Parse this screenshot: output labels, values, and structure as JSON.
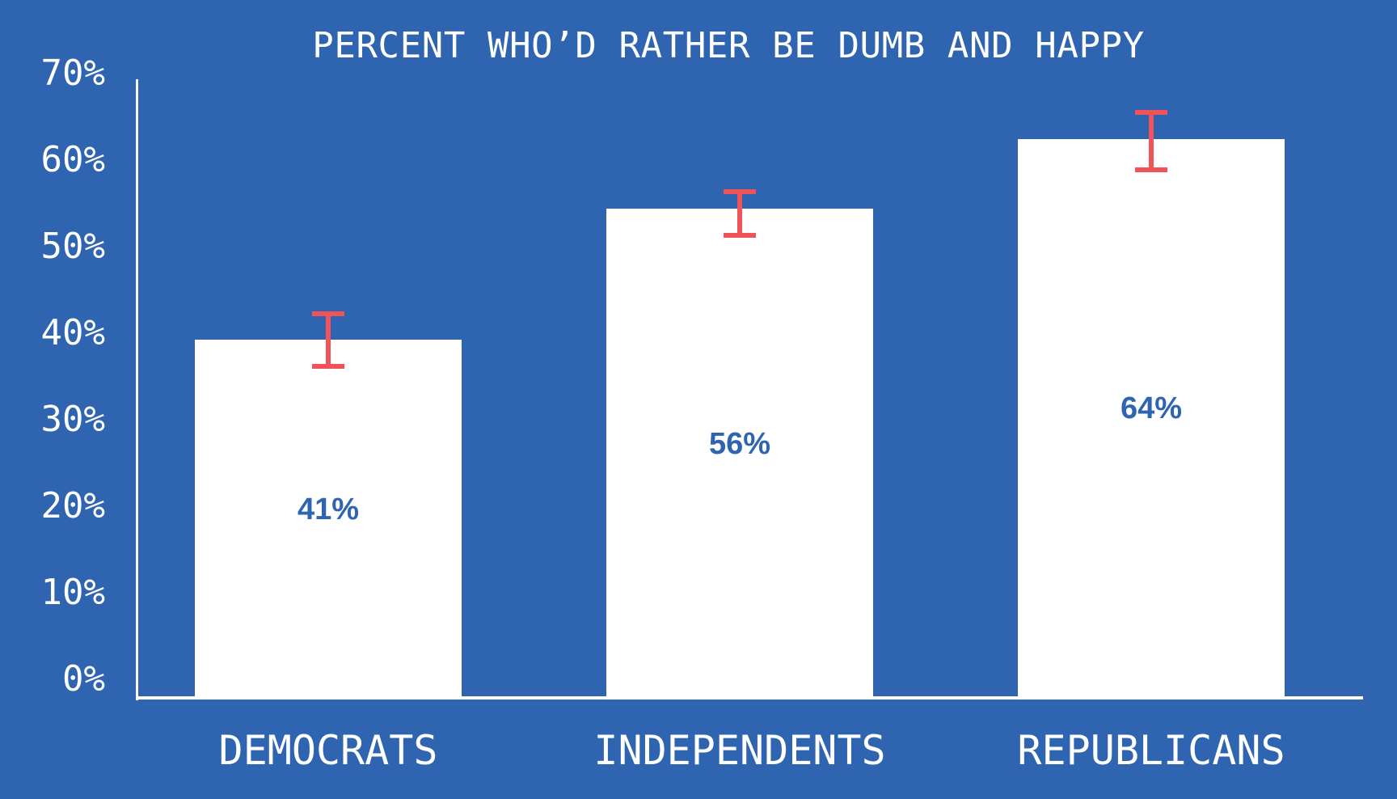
{
  "chart_data": {
    "type": "bar",
    "title": "PERCENT WHO’D RATHER BE DUMB AND HAPPY",
    "xlabel": "",
    "ylabel": "",
    "categories": [
      "DEMOCRATS",
      "INDEPENDENTS",
      "REPUBLICANS"
    ],
    "values": [
      41,
      56,
      64
    ],
    "value_labels": [
      "41%",
      "56%",
      "64%"
    ],
    "error_bars": [
      {
        "low": 38,
        "high": 44
      },
      {
        "low": 53,
        "high": 58
      },
      {
        "low": 60.5,
        "high": 67
      }
    ],
    "ylim": [
      0,
      70
    ],
    "yticks": [
      "0%",
      "10%",
      "20%",
      "30%",
      "40%",
      "50%",
      "60%",
      "70%"
    ],
    "grid": false,
    "legend": null,
    "colors": {
      "background": "#2f64b0",
      "bar": "#ffffff",
      "error_bar": "#f0535a",
      "value_label": "#2f64b0",
      "text": "#ffffff"
    }
  }
}
